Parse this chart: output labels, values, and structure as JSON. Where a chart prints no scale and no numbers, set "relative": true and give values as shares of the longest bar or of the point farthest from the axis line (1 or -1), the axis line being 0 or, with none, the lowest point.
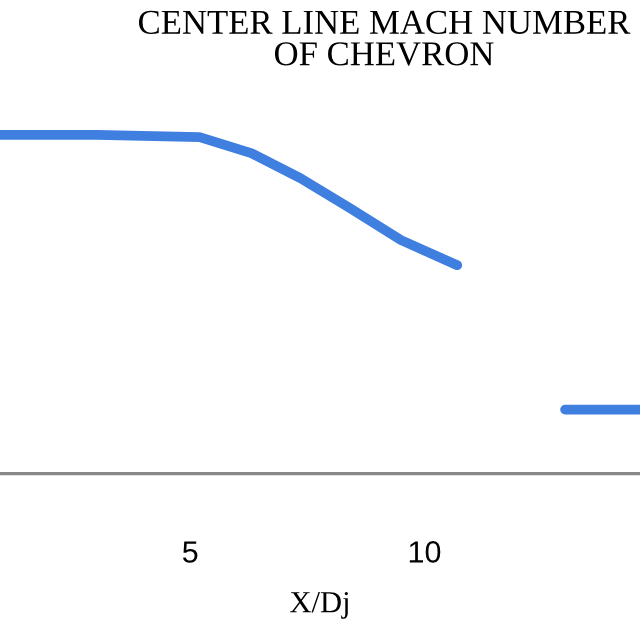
{
  "chart_data": {
    "type": "line",
    "title": "CENTER LINE MACH NUMBER\nOF CHEVRON",
    "xlabel": "X/Dj",
    "relative": true,
    "x": [
      0.94,
      3,
      5.2,
      6.3,
      7.35,
      8.4,
      9.5,
      10.7,
      11.8,
      13.0,
      14.6
    ],
    "series": [
      {
        "color": "#3f7fdf",
        "values": [
          1,
          1,
          0.993,
          0.946,
          0.872,
          0.784,
          0.689,
          0.615,
          null,
          0.189,
          0.189
        ]
      }
    ],
    "xlim": [
      0.94,
      14.6
    ],
    "xticks": [
      5,
      10
    ],
    "grid": false,
    "legend": false,
    "marker": "none",
    "line_style": "solid"
  }
}
